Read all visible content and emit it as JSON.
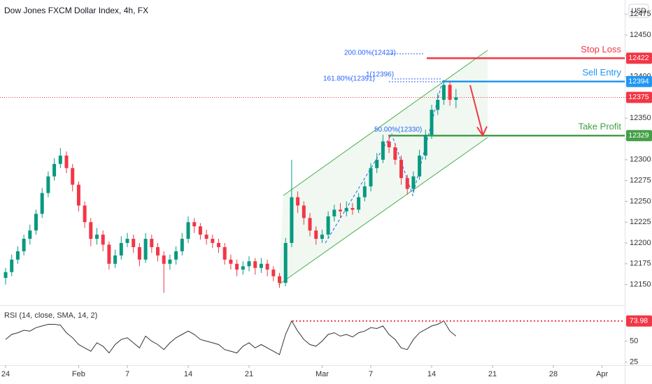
{
  "chart_data": [
    {
      "type": "candlestick",
      "title": "Dow Jones FXCM Dollar Index, 4h, FX",
      "currency": "USD",
      "up_color": "#089981",
      "down_color": "#f23645",
      "x": [
        0,
        0.5,
        1,
        1.5,
        2,
        2.5,
        3,
        3.5,
        4,
        4.5,
        5,
        5.5,
        6,
        6.5,
        7,
        7.5,
        8,
        8.5,
        9,
        9.5,
        10,
        10.5,
        11,
        11.5,
        12,
        12.5,
        13,
        13.5,
        14,
        14.5,
        15,
        15.5,
        16,
        16.5,
        17,
        17.5,
        18,
        18.5,
        19,
        19.5,
        20,
        20.5,
        21,
        21.5,
        22,
        22.5,
        23,
        23.5,
        24,
        24.5,
        25,
        25.5,
        26,
        26.5,
        27,
        27.5,
        28,
        28.5,
        29,
        29.5,
        30,
        30.5,
        31,
        31.5,
        32,
        32.5,
        33,
        33.5,
        34,
        34.5,
        35,
        35.5,
        36,
        36.5,
        37
      ],
      "open": [
        12158,
        12165,
        12180,
        12190,
        12205,
        12215,
        12235,
        12260,
        12280,
        12295,
        12305,
        12290,
        12270,
        12245,
        12225,
        12205,
        12210,
        12198,
        12175,
        12185,
        12200,
        12205,
        12195,
        12180,
        12205,
        12195,
        12185,
        12175,
        12180,
        12190,
        12205,
        12225,
        12220,
        12210,
        12205,
        12200,
        12195,
        12180,
        12175,
        12168,
        12172,
        12178,
        12170,
        12175,
        12168,
        12160,
        12152,
        12200,
        12255,
        12245,
        12230,
        12215,
        12205,
        12210,
        12232,
        12240,
        12238,
        12242,
        12240,
        12255,
        12268,
        12290,
        12300,
        12322,
        12315,
        12300,
        12278,
        12265,
        12280,
        12305,
        12330,
        12360,
        12372,
        12390,
        12372
      ],
      "high": [
        12170,
        12186,
        12196,
        12210,
        12222,
        12240,
        12266,
        12286,
        12302,
        12314,
        12310,
        12295,
        12274,
        12250,
        12230,
        12218,
        12215,
        12202,
        12192,
        12208,
        12212,
        12210,
        12200,
        12212,
        12210,
        12200,
        12190,
        12186,
        12196,
        12212,
        12232,
        12230,
        12224,
        12216,
        12210,
        12205,
        12200,
        12186,
        12180,
        12178,
        12184,
        12182,
        12182,
        12180,
        12172,
        12164,
        12206,
        12300,
        12262,
        12250,
        12236,
        12220,
        12216,
        12238,
        12246,
        12248,
        12250,
        12248,
        12260,
        12274,
        12296,
        12308,
        12330,
        12330,
        12320,
        12305,
        12282,
        12286,
        12312,
        12336,
        12366,
        12380,
        12396,
        12394,
        12385
      ],
      "low": [
        12150,
        12160,
        12175,
        12185,
        12198,
        12210,
        12230,
        12255,
        12275,
        12290,
        12284,
        12262,
        12238,
        12218,
        12196,
        12198,
        12190,
        12168,
        12170,
        12180,
        12195,
        12188,
        12172,
        12176,
        12188,
        12178,
        12140,
        12168,
        12174,
        12185,
        12200,
        12212,
        12204,
        12198,
        12194,
        12188,
        12174,
        12168,
        12160,
        12162,
        12166,
        12162,
        12164,
        12160,
        12154,
        12146,
        12148,
        12195,
        12236,
        12222,
        12208,
        12198,
        12200,
        12205,
        12226,
        12230,
        12232,
        12234,
        12236,
        12250,
        12262,
        12284,
        12296,
        12308,
        12294,
        12270,
        12258,
        12260,
        12276,
        12300,
        12325,
        12354,
        12366,
        12365,
        12362
      ],
      "close": [
        12165,
        12180,
        12190,
        12205,
        12215,
        12235,
        12260,
        12280,
        12295,
        12305,
        12290,
        12270,
        12245,
        12225,
        12205,
        12210,
        12198,
        12175,
        12185,
        12200,
        12205,
        12195,
        12180,
        12205,
        12195,
        12185,
        12175,
        12180,
        12190,
        12205,
        12225,
        12220,
        12210,
        12205,
        12200,
        12195,
        12180,
        12175,
        12168,
        12172,
        12178,
        12170,
        12175,
        12168,
        12160,
        12152,
        12200,
        12255,
        12245,
        12230,
        12215,
        12205,
        12210,
        12232,
        12240,
        12238,
        12242,
        12240,
        12255,
        12268,
        12290,
        12300,
        12322,
        12315,
        12300,
        12278,
        12265,
        12280,
        12305,
        12330,
        12360,
        12372,
        12390,
        12372,
        12375
      ],
      "xlim": [
        -0.46,
        50.86
      ],
      "xticks": [
        {
          "value": 0,
          "label": "24"
        },
        {
          "value": 6,
          "label": "Feb"
        },
        {
          "value": 10,
          "label": "7"
        },
        {
          "value": 15,
          "label": "14"
        },
        {
          "value": 20,
          "label": "21"
        },
        {
          "value": 26,
          "label": "Mar"
        },
        {
          "value": 30,
          "label": "7"
        },
        {
          "value": 35,
          "label": "14"
        },
        {
          "value": 40,
          "label": "21"
        },
        {
          "value": 45,
          "label": "28"
        },
        {
          "value": 49,
          "label": "Apr"
        }
      ],
      "ylim": [
        12127,
        12492
      ],
      "yticks": [
        12150,
        12175,
        12200,
        12225,
        12250,
        12275,
        12300,
        12325,
        12350,
        12375,
        12400,
        12425,
        12450,
        12475
      ],
      "last_price": 12375,
      "levels": [
        {
          "name": "Stop Loss",
          "value": 12422,
          "color": "#f23645"
        },
        {
          "name": "Sell Entry",
          "value": 12394,
          "color": "#2196f3"
        },
        {
          "name": "Take Profit",
          "value": 12329,
          "color": "#43a047"
        }
      ],
      "fib_labels": [
        "200.00%(12423)",
        "161.80%(12391)",
        "1(12396)",
        "50.00%(12330)"
      ]
    },
    {
      "type": "line",
      "title": "RSI (14, close, SMA, 14, 2)",
      "color": "#333333",
      "x": [
        0,
        0.5,
        1,
        1.5,
        2,
        2.5,
        3,
        3.5,
        4,
        4.5,
        5,
        5.5,
        6,
        6.5,
        7,
        7.5,
        8,
        8.5,
        9,
        9.5,
        10,
        10.5,
        11,
        11.5,
        12,
        12.5,
        13,
        13.5,
        14,
        14.5,
        15,
        15.5,
        16,
        16.5,
        17,
        17.5,
        18,
        18.5,
        19,
        19.5,
        20,
        20.5,
        21,
        21.5,
        22,
        22.5,
        23,
        23.5,
        24,
        24.5,
        25,
        25.5,
        26,
        26.5,
        27,
        27.5,
        28,
        28.5,
        29,
        29.5,
        30,
        30.5,
        31,
        31.5,
        32,
        32.5,
        33,
        33.5,
        34,
        34.5,
        35,
        35.5,
        36,
        36.5,
        37
      ],
      "values": [
        52,
        58,
        60,
        63,
        62,
        66,
        68,
        70,
        70,
        69,
        60,
        54,
        46,
        42,
        38,
        48,
        44,
        36,
        46,
        52,
        54,
        48,
        42,
        56,
        50,
        46,
        40,
        48,
        54,
        58,
        62,
        58,
        52,
        50,
        48,
        46,
        40,
        38,
        36,
        44,
        48,
        42,
        46,
        42,
        38,
        34,
        58,
        74,
        62,
        52,
        46,
        44,
        50,
        58,
        60,
        56,
        58,
        55,
        60,
        62,
        66,
        65,
        68,
        58,
        52,
        42,
        40,
        52,
        60,
        64,
        68,
        70,
        74,
        62,
        56
      ],
      "ylim": [
        19,
        92
      ],
      "yticks": [
        25,
        50
      ],
      "level": 73.98,
      "level_color": "#f23645"
    }
  ]
}
